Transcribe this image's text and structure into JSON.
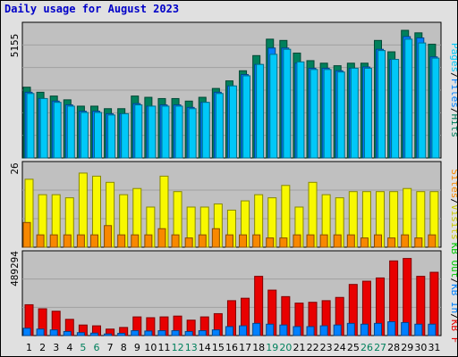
{
  "page": {
    "title": "Daily usage for August 2023"
  },
  "colors": {
    "background": "#e0e0e0",
    "plot_background": "#c0c0c0",
    "title": "#0000c8",
    "hits": "#00805c",
    "files": "#0080ff",
    "pages": "#00c8f8",
    "visits": "#f8f800",
    "sites": "#f88800",
    "kbin": "#0080ff",
    "kbout": "#00c800",
    "kbf": "#e80000",
    "weekend": "#00805c",
    "weekday": "#000000"
  },
  "chart_data": [
    {
      "type": "bar",
      "panel": "hits-files-pages",
      "categories": [
        "1",
        "2",
        "3",
        "4",
        "5",
        "6",
        "7",
        "8",
        "9",
        "10",
        "11",
        "12",
        "13",
        "14",
        "15",
        "16",
        "17",
        "18",
        "19",
        "20",
        "21",
        "22",
        "23",
        "24",
        "25",
        "26",
        "27",
        "28",
        "29",
        "30",
        "31"
      ],
      "weekend_days": [
        5,
        6,
        12,
        13,
        19,
        20,
        26,
        27
      ],
      "ymax_label": "5155",
      "ylim": [
        0,
        5155
      ],
      "legend": [
        "Pages",
        "Files",
        "Hits"
      ],
      "legend_position": "right",
      "grid": true,
      "series": [
        {
          "name": "Hits",
          "color": "#00805c",
          "values": [
            2800,
            2600,
            2450,
            2300,
            2050,
            2050,
            1950,
            1950,
            2450,
            2400,
            2350,
            2350,
            2250,
            2400,
            2750,
            3050,
            3450,
            4050,
            4700,
            4650,
            4150,
            3850,
            3750,
            3650,
            3750,
            3750,
            4650,
            4200,
            5050,
            4950,
            4500
          ]
        },
        {
          "name": "Files",
          "color": "#0080ff",
          "values": [
            2600,
            2350,
            2250,
            2100,
            1850,
            1850,
            1750,
            1750,
            2150,
            2050,
            2100,
            2100,
            2000,
            2200,
            2600,
            2850,
            3300,
            3700,
            4350,
            4350,
            3750,
            3550,
            3550,
            3450,
            3550,
            3600,
            4300,
            3900,
            4800,
            4750,
            4000
          ]
        },
        {
          "name": "Pages",
          "color": "#00c8f8",
          "values": [
            2550,
            2350,
            2200,
            2050,
            1800,
            1800,
            1700,
            1750,
            2100,
            2050,
            2050,
            2050,
            1950,
            2200,
            2550,
            2850,
            3250,
            3700,
            4100,
            4300,
            3800,
            3500,
            3500,
            3400,
            3550,
            3550,
            4250,
            3900,
            4700,
            4550,
            3950
          ]
        }
      ]
    },
    {
      "type": "bar",
      "panel": "visits-sites",
      "categories": [
        "1",
        "2",
        "3",
        "4",
        "5",
        "6",
        "7",
        "8",
        "9",
        "10",
        "11",
        "12",
        "13",
        "14",
        "15",
        "16",
        "17",
        "18",
        "19",
        "20",
        "21",
        "22",
        "23",
        "24",
        "25",
        "26",
        "27",
        "28",
        "29",
        "30",
        "31"
      ],
      "ymax_label": "26",
      "ylim": [
        0,
        26
      ],
      "legend": [
        "Visits",
        "Sites"
      ],
      "legend_position": "right",
      "grid": true,
      "series": [
        {
          "name": "Visits",
          "color": "#f8f800",
          "values": [
            22,
            17,
            17,
            16,
            24,
            23,
            21,
            17,
            19,
            13,
            23,
            18,
            13,
            13,
            14,
            12,
            15,
            17,
            16,
            20,
            13,
            21,
            17,
            16,
            18,
            18,
            18,
            18,
            19,
            18,
            18
          ]
        },
        {
          "name": "Sites",
          "color": "#f88800",
          "values": [
            8,
            4,
            4,
            4,
            4,
            4,
            7,
            4,
            4,
            4,
            6,
            4,
            3,
            4,
            6,
            4,
            4,
            4,
            3,
            3,
            4,
            4,
            4,
            4,
            4,
            3,
            4,
            3,
            4,
            3,
            4
          ]
        }
      ]
    },
    {
      "type": "bar",
      "panel": "kbf-kbin-kbout",
      "categories": [
        "1",
        "2",
        "3",
        "4",
        "5",
        "6",
        "7",
        "8",
        "9",
        "10",
        "11",
        "12",
        "13",
        "14",
        "15",
        "16",
        "17",
        "18",
        "19",
        "20",
        "21",
        "22",
        "23",
        "24",
        "25",
        "26",
        "27",
        "28",
        "29",
        "30",
        "31"
      ],
      "ymax_label": "489294",
      "ylim": [
        0,
        489294
      ],
      "legend": [
        "KB F",
        "KB In",
        "KB Out"
      ],
      "legend_position": "right",
      "grid": true,
      "series": [
        {
          "name": "KB F",
          "color": "#e80000",
          "values": [
            190000,
            165000,
            150000,
            100000,
            65000,
            60000,
            40000,
            50000,
            115000,
            110000,
            115000,
            120000,
            95000,
            115000,
            135000,
            215000,
            230000,
            365000,
            280000,
            240000,
            200000,
            205000,
            215000,
            235000,
            315000,
            335000,
            355000,
            460000,
            475000,
            365000,
            390000
          ]
        },
        {
          "name": "KB In",
          "color": "#0080ff",
          "values": [
            45000,
            40000,
            35000,
            25000,
            18000,
            15000,
            10000,
            14000,
            30000,
            28000,
            30000,
            30000,
            25000,
            30000,
            35000,
            55000,
            60000,
            75000,
            70000,
            65000,
            55000,
            55000,
            60000,
            65000,
            75000,
            70000,
            75000,
            85000,
            80000,
            70000,
            70000
          ]
        },
        {
          "name": "KB Out",
          "color": "#00c800",
          "values": [
            0,
            0,
            0,
            0,
            0,
            0,
            0,
            0,
            0,
            0,
            0,
            0,
            0,
            0,
            0,
            0,
            0,
            0,
            0,
            0,
            0,
            0,
            0,
            0,
            0,
            0,
            0,
            0,
            0,
            0,
            0
          ]
        }
      ]
    }
  ]
}
